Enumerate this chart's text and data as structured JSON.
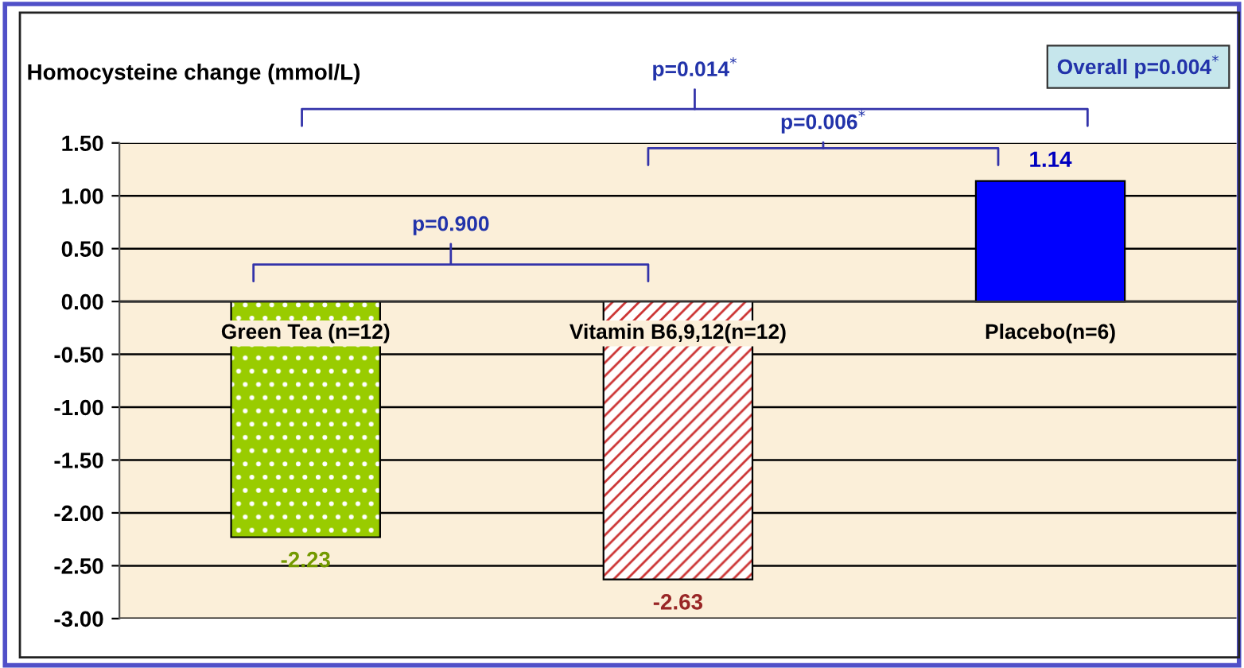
{
  "chart_data": {
    "type": "bar",
    "ylabel": "Homocysteine change (mmol/L)",
    "categories": [
      "Green Tea (n=12)",
      "Vitamin B6,9,12(n=12)",
      "Placebo(n=6)"
    ],
    "values": [
      -2.23,
      -2.63,
      1.14
    ],
    "colors": [
      "#99cc00",
      "#cc3333",
      "#0000ff"
    ],
    "data_labels": true,
    "ylim": [
      -3.0,
      1.5
    ],
    "yticks": [
      {
        "value": -3.0,
        "label": "-3.00"
      },
      {
        "value": -2.5,
        "label": "-2.50"
      },
      {
        "value": -2.0,
        "label": "-2.00"
      },
      {
        "value": -1.5,
        "label": "-1.50"
      },
      {
        "value": -1.0,
        "label": "-1.00"
      },
      {
        "value": -0.5,
        "label": "-0.50"
      },
      {
        "value": 0.0,
        "label": "0.00"
      },
      {
        "value": 0.5,
        "label": "0.50"
      },
      {
        "value": 1.0,
        "label": "1.00"
      },
      {
        "value": 1.5,
        "label": "1.50"
      }
    ],
    "grid": "y",
    "annotations": [
      "p=0.900",
      "p=0.006$^{*}$",
      "p=0.014$^{*}$",
      "Overall p=0.004$^{*}$"
    ]
  }
}
